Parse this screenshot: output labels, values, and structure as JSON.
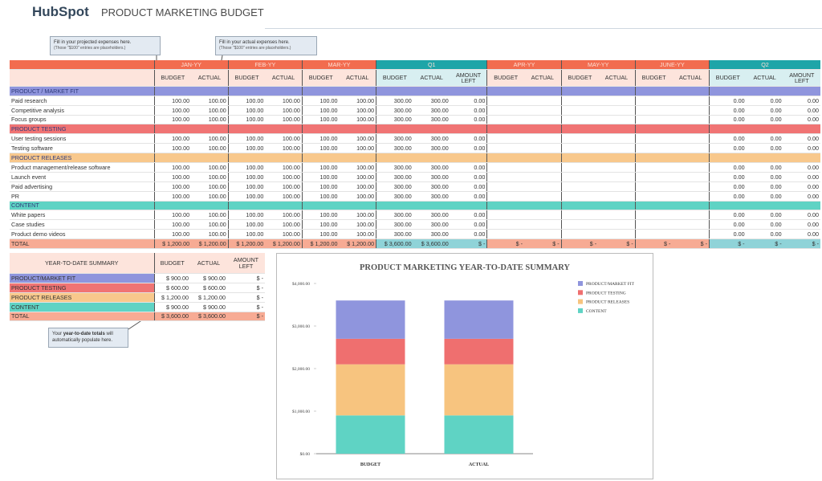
{
  "header": {
    "logo": "HubSpot",
    "title": "PRODUCT MARKETING BUDGET"
  },
  "callouts": [
    {
      "text": "Fill in your projected expenses here.",
      "note": "(Those \"$100\" entries are placeholders.)"
    },
    {
      "text": "Fill in your actual expenses here.",
      "note": "(Those \"$100\" entries are placeholders.)"
    },
    {
      "before": "Your ",
      "bold": "year-to-date totals",
      "after": " will automatically populate here."
    }
  ],
  "table": {
    "periods": [
      {
        "name": "JAN-YY",
        "header_color": "#f26c4f",
        "subheader_color": "#fde4dc",
        "total_color": "#f7ab94",
        "columns": [
          "BUDGET",
          "ACTUAL"
        ]
      },
      {
        "name": "FEB-YY",
        "header_color": "#f26c4f",
        "subheader_color": "#fde4dc",
        "total_color": "#f7ab94",
        "columns": [
          "BUDGET",
          "ACTUAL"
        ]
      },
      {
        "name": "MAR-YY",
        "header_color": "#f26c4f",
        "subheader_color": "#fde4dc",
        "total_color": "#f7ab94",
        "columns": [
          "BUDGET",
          "ACTUAL"
        ]
      },
      {
        "name": "Q1",
        "header_color": "#1ea5a8",
        "subheader_color": "#d8eff1",
        "total_color": "#8fd3d8",
        "columns": [
          "BUDGET",
          "ACTUAL",
          "AMOUNT LEFT"
        ]
      },
      {
        "name": "APR-YY",
        "header_color": "#f26c4f",
        "subheader_color": "#fde4dc",
        "total_color": "#f7ab94",
        "columns": [
          "BUDGET",
          "ACTUAL"
        ]
      },
      {
        "name": "MAY-YY",
        "header_color": "#f26c4f",
        "subheader_color": "#fde4dc",
        "total_color": "#f7ab94",
        "columns": [
          "BUDGET",
          "ACTUAL"
        ]
      },
      {
        "name": "JUNE-YY",
        "header_color": "#f26c4f",
        "subheader_color": "#fde4dc",
        "total_color": "#f7ab94",
        "columns": [
          "BUDGET",
          "ACTUAL"
        ]
      },
      {
        "name": "Q2",
        "header_color": "#1ea5a8",
        "subheader_color": "#d8eff1",
        "total_color": "#8fd3d8",
        "columns": [
          "BUDGET",
          "ACTUAL",
          "AMOUNT LEFT"
        ]
      }
    ],
    "sections": [
      {
        "name": "PRODUCT / MARKET FIT",
        "color": "#8f95dd",
        "rows": [
          {
            "label": "Paid research",
            "cells": [
              "100.00",
              "100.00",
              "100.00",
              "100.00",
              "100.00",
              "100.00",
              "300.00",
              "300.00",
              "0.00",
              null,
              null,
              null,
              null,
              null,
              null,
              "0.00",
              "0.00",
              "0.00"
            ]
          },
          {
            "label": "Competitive analysis",
            "cells": [
              "100.00",
              "100.00",
              "100.00",
              "100.00",
              "100.00",
              "100.00",
              "300.00",
              "300.00",
              "0.00",
              null,
              null,
              null,
              null,
              null,
              null,
              "0.00",
              "0.00",
              "0.00"
            ]
          },
          {
            "label": "Focus groups",
            "cells": [
              "100.00",
              "100.00",
              "100.00",
              "100.00",
              "100.00",
              "100.00",
              "300.00",
              "300.00",
              "0.00",
              null,
              null,
              null,
              null,
              null,
              null,
              "0.00",
              "0.00",
              "0.00"
            ]
          }
        ]
      },
      {
        "name": "PRODUCT TESTING",
        "color": "#f07474",
        "rows": [
          {
            "label": "User testing sessions",
            "cells": [
              "100.00",
              "100.00",
              "100.00",
              "100.00",
              "100.00",
              "100.00",
              "300.00",
              "300.00",
              "0.00",
              null,
              null,
              null,
              null,
              null,
              null,
              "0.00",
              "0.00",
              "0.00"
            ]
          },
          {
            "label": "Testing software",
            "cells": [
              "100.00",
              "100.00",
              "100.00",
              "100.00",
              "100.00",
              "100.00",
              "300.00",
              "300.00",
              "0.00",
              null,
              null,
              null,
              null,
              null,
              null,
              "0.00",
              "0.00",
              "0.00"
            ]
          }
        ]
      },
      {
        "name": "PRODUCT RELEASES",
        "color": "#f8c88c",
        "rows": [
          {
            "label": "Product management/release software",
            "cells": [
              "100.00",
              "100.00",
              "100.00",
              "100.00",
              "100.00",
              "100.00",
              "300.00",
              "300.00",
              "0.00",
              null,
              null,
              null,
              null,
              null,
              null,
              "0.00",
              "0.00",
              "0.00"
            ]
          },
          {
            "label": "Launch event",
            "cells": [
              "100.00",
              "100.00",
              "100.00",
              "100.00",
              "100.00",
              "100.00",
              "300.00",
              "300.00",
              "0.00",
              null,
              null,
              null,
              null,
              null,
              null,
              "0.00",
              "0.00",
              "0.00"
            ]
          },
          {
            "label": "Paid advertising",
            "cells": [
              "100.00",
              "100.00",
              "100.00",
              "100.00",
              "100.00",
              "100.00",
              "300.00",
              "300.00",
              "0.00",
              null,
              null,
              null,
              null,
              null,
              null,
              "0.00",
              "0.00",
              "0.00"
            ]
          },
          {
            "label": "PR",
            "cells": [
              "100.00",
              "100.00",
              "100.00",
              "100.00",
              "100.00",
              "100.00",
              "300.00",
              "300.00",
              "0.00",
              null,
              null,
              null,
              null,
              null,
              null,
              "0.00",
              "0.00",
              "0.00"
            ]
          }
        ]
      },
      {
        "name": "CONTENT",
        "color": "#5fd3c4",
        "rows": [
          {
            "label": "White papers",
            "cells": [
              "100.00",
              "100.00",
              "100.00",
              "100.00",
              "100.00",
              "100.00",
              "300.00",
              "300.00",
              "0.00",
              null,
              null,
              null,
              null,
              null,
              null,
              "0.00",
              "0.00",
              "0.00"
            ]
          },
          {
            "label": "Case studies",
            "cells": [
              "100.00",
              "100.00",
              "100.00",
              "100.00",
              "100.00",
              "100.00",
              "300.00",
              "300.00",
              "0.00",
              null,
              null,
              null,
              null,
              null,
              null,
              "0.00",
              "0.00",
              "0.00"
            ]
          },
          {
            "label": "Product demo videos",
            "cells": [
              "100.00",
              "100.00",
              "100.00",
              "100.00",
              "100.00",
              "100.00",
              "300.00",
              "300.00",
              "0.00",
              null,
              null,
              null,
              null,
              null,
              null,
              "0.00",
              "0.00",
              "0.00"
            ]
          }
        ]
      }
    ],
    "total": {
      "label": "TOTAL",
      "color": "#f7ab94",
      "cells": [
        "$ 1,200.00",
        "$ 1,200.00",
        "$ 1,200.00",
        "$ 1,200.00",
        "$ 1,200.00",
        "$ 1,200.00",
        "$ 3,600.00",
        "$ 3,600.00",
        "$ -",
        "$ -",
        "$ -",
        "$ -",
        "$ -",
        "$ -",
        "$ -",
        "$ -",
        "$ -",
        "$ -"
      ]
    }
  },
  "summary": {
    "title": "YEAR-TO-DATE SUMMARY",
    "columns": [
      "BUDGET",
      "ACTUAL",
      "AMOUNT LEFT"
    ],
    "rows": [
      {
        "label": "PRODUCT/MARKET FIT",
        "color": "#8f95dd",
        "cells": [
          "$ 900.00",
          "$ 900.00",
          "$ -"
        ]
      },
      {
        "label": "PRODUCT TESTING",
        "color": "#f07474",
        "cells": [
          "$ 600.00",
          "$ 600.00",
          "$ -"
        ]
      },
      {
        "label": "PRODUCT RELEASES",
        "color": "#f8c88c",
        "cells": [
          "$ 1,200.00",
          "$ 1,200.00",
          "$ -"
        ]
      },
      {
        "label": "CONTENT",
        "color": "#5fd3c4",
        "cells": [
          "$ 900.00",
          "$ 900.00",
          "$ -"
        ]
      },
      {
        "label": "TOTAL",
        "color": "#f7ab94",
        "cells": [
          "$ 3,600.00",
          "$ 3,600.00",
          "$ -"
        ]
      }
    ]
  },
  "chart_data": {
    "type": "stacked_bar",
    "title": "PRODUCT MARKETING YEAR-TO-DATE SUMMARY",
    "categories": [
      "BUDGET",
      "ACTUAL"
    ],
    "series": [
      {
        "name": "PRODUCT/MARKET FIT",
        "color": "#8f95dd",
        "values": [
          900,
          900
        ]
      },
      {
        "name": "PRODUCT TESTING",
        "color": "#ef6f6f",
        "values": [
          600,
          600
        ]
      },
      {
        "name": "PRODUCT RELEASES",
        "color": "#f7c47f",
        "values": [
          1200,
          1200
        ]
      },
      {
        "name": "CONTENT",
        "color": "#5fd3c4",
        "values": [
          900,
          900
        ]
      }
    ],
    "ylim": [
      0,
      4000
    ],
    "yticks": [
      {
        "value": 0,
        "label": "$0.00"
      },
      {
        "value": 1000,
        "label": "$1,000.00"
      },
      {
        "value": 2000,
        "label": "$2,000.00"
      },
      {
        "value": 3000,
        "label": "$3,000.00"
      },
      {
        "value": 4000,
        "label": "$4,000.00"
      }
    ],
    "grid": false,
    "legend": "top-right"
  }
}
